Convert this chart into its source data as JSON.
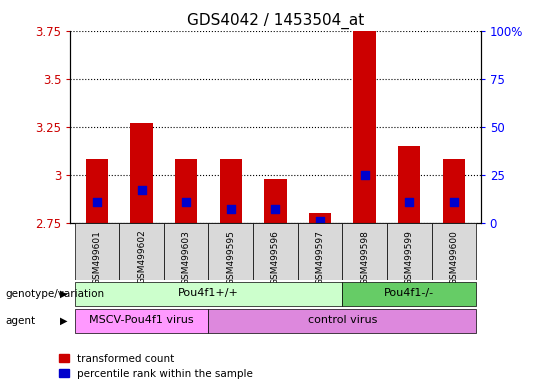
{
  "title": "GDS4042 / 1453504_at",
  "samples": [
    "GSM499601",
    "GSM499602",
    "GSM499603",
    "GSM499595",
    "GSM499596",
    "GSM499597",
    "GSM499598",
    "GSM499599",
    "GSM499600"
  ],
  "transformed_count": [
    3.08,
    3.27,
    3.08,
    3.08,
    2.98,
    2.8,
    3.88,
    3.15,
    3.08
  ],
  "percentile_rank": [
    2.86,
    2.92,
    2.86,
    2.82,
    2.82,
    2.76,
    3.0,
    2.86,
    2.86
  ],
  "bar_bottom": 2.75,
  "ylim_left": [
    2.75,
    3.75
  ],
  "ylim_right": [
    0,
    100
  ],
  "yticks_left": [
    2.75,
    3.0,
    3.25,
    3.5,
    3.75
  ],
  "yticks_right": [
    0,
    25,
    50,
    75,
    100
  ],
  "ytick_labels_left": [
    "2.75",
    "3",
    "3.25",
    "3.5",
    "3.75"
  ],
  "ytick_labels_right": [
    "0",
    "25",
    "50",
    "75",
    "100%"
  ],
  "red_color": "#cc0000",
  "blue_color": "#0000cc",
  "bar_width": 0.5,
  "genotype_groups": [
    {
      "label": "Pou4f1+/+",
      "start": 0,
      "end": 6,
      "color": "#ccffcc"
    },
    {
      "label": "Pou4f1-/-",
      "start": 6,
      "end": 9,
      "color": "#66cc66"
    }
  ],
  "agent_groups": [
    {
      "label": "MSCV-Pou4f1 virus",
      "start": 0,
      "end": 3,
      "color": "#ff99ff"
    },
    {
      "label": "control virus",
      "start": 3,
      "end": 9,
      "color": "#dd88dd"
    }
  ],
  "legend_red": "transformed count",
  "legend_blue": "percentile rank within the sample",
  "grid_color": "black",
  "bg_plot": "white",
  "bg_xticklabel": "#d9d9d9",
  "title_fontsize": 11,
  "blue_marker_size": 28
}
